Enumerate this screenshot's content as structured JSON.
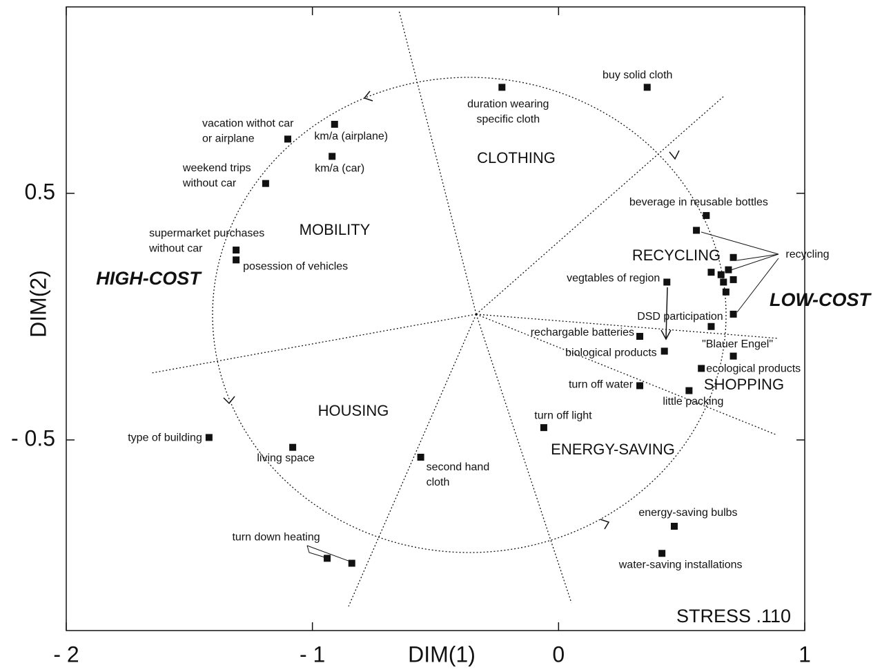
{
  "chart_data": {
    "type": "scatter",
    "xlabel": "DIM(1)",
    "ylabel": "DIM(2)",
    "xlim": [
      -2,
      1
    ],
    "ylim": [
      -1.273,
      1.256
    ],
    "xticks": [
      {
        "value": -2,
        "label": "- 2"
      },
      {
        "value": -1,
        "label": "- 1"
      },
      0,
      1
    ],
    "yticks": [
      0.5,
      {
        "value": -0.5,
        "label": "- 0.5"
      }
    ],
    "color": "#111111",
    "points": [
      {
        "x": -0.23,
        "y": 0.93,
        "label": [
          "duration wearing",
          "specific cloth"
        ]
      },
      {
        "x": 0.36,
        "y": 0.93,
        "label": [
          "buy solid cloth"
        ]
      },
      {
        "x": -1.1,
        "y": 0.72,
        "label": [
          "vacation withot car",
          "or airplane"
        ]
      },
      {
        "x": -0.91,
        "y": 0.78,
        "label": [
          "km/a (airplane)"
        ]
      },
      {
        "x": -0.92,
        "y": 0.65,
        "label": [
          "km/a (car)"
        ]
      },
      {
        "x": -1.19,
        "y": 0.54,
        "label": [
          "weekend trips",
          "without car"
        ]
      },
      {
        "x": -1.31,
        "y": 0.27,
        "label": [
          "supermarket purchases",
          "without car"
        ]
      },
      {
        "x": -1.31,
        "y": 0.23,
        "label": [
          "posession of vehicles"
        ]
      },
      {
        "x": 0.6,
        "y": 0.41,
        "label": [
          "beverage in reusable bottles"
        ]
      },
      {
        "x": 0.56,
        "y": 0.35,
        "label": null
      },
      {
        "x": 0.71,
        "y": 0.24,
        "label": null
      },
      {
        "x": 0.69,
        "y": 0.19,
        "label": null
      },
      {
        "x": 0.62,
        "y": 0.18,
        "label": null
      },
      {
        "x": 0.66,
        "y": 0.17,
        "label": null
      },
      {
        "x": 0.71,
        "y": 0.15,
        "label": null
      },
      {
        "x": 0.67,
        "y": 0.14,
        "label": null
      },
      {
        "x": 0.68,
        "y": 0.1,
        "label": null
      },
      {
        "x": 0.71,
        "y": 0.01,
        "label": null
      },
      {
        "x": 0.44,
        "y": 0.14,
        "label": [
          "vegtables of region"
        ]
      },
      {
        "x": 0.62,
        "y": -0.04,
        "label": [
          "DSD participation"
        ]
      },
      {
        "x": 0.33,
        "y": -0.08,
        "label": [
          "rechargable batteries"
        ]
      },
      {
        "x": 0.43,
        "y": -0.14,
        "label": [
          "biological products"
        ]
      },
      {
        "x": 0.71,
        "y": -0.16,
        "label": [
          "\"Blauer Engel\""
        ]
      },
      {
        "x": 0.58,
        "y": -0.21,
        "label": [
          "ecological products"
        ]
      },
      {
        "x": 0.33,
        "y": -0.28,
        "label": [
          "turn off water"
        ]
      },
      {
        "x": 0.53,
        "y": -0.3,
        "label": [
          "little packing"
        ]
      },
      {
        "x": -0.06,
        "y": -0.45,
        "label": [
          "turn off light"
        ]
      },
      {
        "x": -1.42,
        "y": -0.49,
        "label": [
          "type of building"
        ]
      },
      {
        "x": -1.08,
        "y": -0.53,
        "label": [
          "living space"
        ]
      },
      {
        "x": -0.56,
        "y": -0.57,
        "label": [
          "second hand",
          "cloth"
        ]
      },
      {
        "x": 0.47,
        "y": -0.85,
        "label": [
          "energy-saving bulbs"
        ]
      },
      {
        "x": 0.42,
        "y": -0.96,
        "label": [
          "water-saving installations"
        ]
      },
      {
        "x": -0.94,
        "y": -0.98,
        "label": [
          "turn down heating"
        ]
      },
      {
        "x": -0.84,
        "y": -1.0,
        "label": null
      }
    ],
    "annotations": [
      "CLOTHING",
      "MOBILITY",
      "RECYCLING",
      "HOUSING",
      "SHOPPING",
      "ENERGY-SAVING",
      "HIGH-COST",
      "LOW-COST",
      "STRESS .110",
      "recycling"
    ]
  }
}
